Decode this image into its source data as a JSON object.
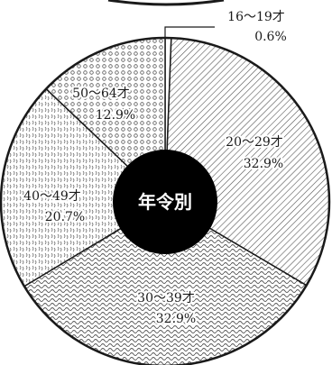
{
  "chart_data": {
    "type": "pie",
    "center_label": "年令別",
    "slices": [
      {
        "category": "16～19才",
        "value": 0.6,
        "value_label": "0.6%",
        "pattern": "plain"
      },
      {
        "category": "20～29才",
        "value": 32.9,
        "value_label": "32.9%",
        "pattern": "diagonal-lines"
      },
      {
        "category": "30～39才",
        "value": 32.9,
        "value_label": "32.9%",
        "pattern": "wave"
      },
      {
        "category": "40～49才",
        "value": 20.7,
        "value_label": "20.7%",
        "pattern": "squiggle"
      },
      {
        "category": "50～64才",
        "value": 12.9,
        "value_label": "12.9%",
        "pattern": "circles"
      }
    ],
    "colors": {
      "ink": "#1a1a1a",
      "center_fill": "#000000",
      "background": "#ffffff"
    }
  }
}
